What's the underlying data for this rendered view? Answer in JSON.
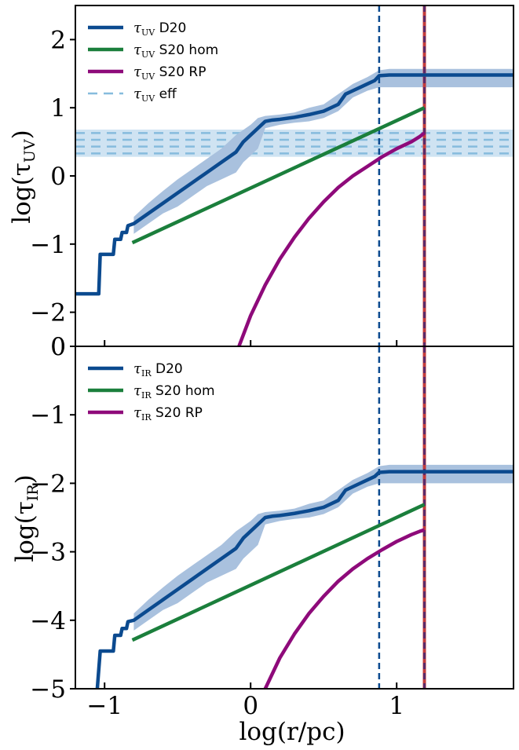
{
  "colors": {
    "d20": "#0b4a8f",
    "d20_band": "#a9c1de",
    "hom": "#1b7f3c",
    "rp": "#8e0a7a",
    "eff": "#86bcdd",
    "eff_band": "#cfe3f2",
    "vline_blue": "#0b4a8f",
    "vline_red": "#c23b3b",
    "vline_purple": "#5a2a6a"
  },
  "chart_data": [
    {
      "type": "line",
      "panel": "top",
      "ylabel_main": "log(τ",
      "ylabel_sub": "UV",
      "ylabel_end": ")",
      "ylim": [
        -2.5,
        2.5
      ],
      "yticks": [
        "−2",
        "−1",
        "0",
        "1",
        "2"
      ],
      "ytick_values": [
        -2,
        -1,
        0,
        1,
        2
      ],
      "extra_ytick_label": "0",
      "xlim": [
        -1.2,
        1.8
      ],
      "legend": {
        "placement": "top-left",
        "entries": [
          {
            "sym": "τ",
            "sub": "UV",
            "text": "D20",
            "key": "d20",
            "style": "solid"
          },
          {
            "sym": "τ",
            "sub": "UV",
            "text": "S20 hom",
            "key": "hom",
            "style": "solid"
          },
          {
            "sym": "τ",
            "sub": "UV",
            "text": "S20 RP",
            "key": "rp",
            "style": "solid"
          },
          {
            "sym": "τ",
            "sub": "UV",
            "text": "eff",
            "key": "eff",
            "style": "dashed"
          }
        ]
      },
      "series": [
        {
          "name": "τUV D20",
          "x": [
            -1.2,
            -1.04,
            -1.03,
            -0.94,
            -0.93,
            -0.89,
            -0.88,
            -0.85,
            -0.84,
            -0.8,
            -0.7,
            -0.6,
            -0.5,
            -0.4,
            -0.3,
            -0.2,
            -0.1,
            -0.05,
            0.0,
            0.05,
            0.1,
            0.15,
            0.2,
            0.3,
            0.4,
            0.5,
            0.6,
            0.65,
            0.7,
            0.75,
            0.8,
            0.85,
            0.88,
            0.95,
            1.2,
            1.8
          ],
          "y": [
            -1.73,
            -1.73,
            -1.15,
            -1.15,
            -0.93,
            -0.93,
            -0.83,
            -0.83,
            -0.73,
            -0.7,
            -0.55,
            -0.4,
            -0.25,
            -0.1,
            0.05,
            0.2,
            0.35,
            0.5,
            0.6,
            0.7,
            0.8,
            0.82,
            0.83,
            0.86,
            0.9,
            0.95,
            1.05,
            1.2,
            1.25,
            1.3,
            1.35,
            1.4,
            1.47,
            1.48,
            1.48,
            1.48
          ]
        },
        {
          "name": "τUV D20 upper",
          "x": [
            -0.8,
            -0.7,
            -0.6,
            -0.5,
            -0.4,
            -0.3,
            -0.2,
            -0.1,
            0.0,
            0.05,
            0.1,
            0.2,
            0.3,
            0.4,
            0.5,
            0.6,
            0.7,
            0.8,
            0.88,
            0.95,
            1.2,
            1.8
          ],
          "y": [
            -0.6,
            -0.4,
            -0.22,
            -0.05,
            0.1,
            0.25,
            0.4,
            0.6,
            0.75,
            0.85,
            0.88,
            0.9,
            0.93,
            1.0,
            1.05,
            1.2,
            1.35,
            1.45,
            1.55,
            1.57,
            1.57,
            1.57
          ]
        },
        {
          "name": "τUV D20 lower",
          "x": [
            -0.8,
            -0.7,
            -0.6,
            -0.5,
            -0.4,
            -0.3,
            -0.2,
            -0.1,
            -0.05,
            0.0,
            0.05,
            0.1,
            0.2,
            0.3,
            0.4,
            0.5,
            0.6,
            0.7,
            0.8,
            0.88,
            0.95,
            1.2,
            1.8
          ],
          "y": [
            -0.85,
            -0.7,
            -0.55,
            -0.45,
            -0.3,
            -0.15,
            -0.05,
            0.05,
            0.2,
            0.3,
            0.4,
            0.7,
            0.75,
            0.78,
            0.8,
            0.85,
            0.95,
            1.15,
            1.25,
            1.3,
            1.3,
            1.3,
            1.3
          ]
        },
        {
          "name": "τUV S20 hom",
          "x": [
            -0.81,
            1.19
          ],
          "y": [
            -0.98,
            1.0
          ]
        },
        {
          "name": "τUV S20 RP",
          "x": [
            -0.08,
            0.0,
            0.1,
            0.2,
            0.3,
            0.4,
            0.5,
            0.6,
            0.7,
            0.8,
            0.9,
            1.0,
            1.1,
            1.16,
            1.19
          ],
          "y": [
            -2.5,
            -2.05,
            -1.6,
            -1.22,
            -0.9,
            -0.62,
            -0.38,
            -0.17,
            0.0,
            0.14,
            0.28,
            0.4,
            0.5,
            0.58,
            0.63
          ]
        }
      ],
      "eff_levels": [
        0.33,
        0.43,
        0.53,
        0.63
      ],
      "eff_band": [
        0.28,
        0.68
      ],
      "vlines": [
        0.88,
        1.19
      ]
    },
    {
      "type": "line",
      "panel": "bottom",
      "ylabel_main": "log(τ",
      "ylabel_sub": "IR",
      "ylabel_end": ")",
      "ylim": [
        -5,
        0
      ],
      "yticks": [
        "−5",
        "−4",
        "−3",
        "−2",
        "−1",
        "0"
      ],
      "ytick_values": [
        -5,
        -4,
        -3,
        -2,
        -1,
        0
      ],
      "xlabel": "log(r/pc)",
      "xticks": [
        "−1",
        "0",
        "1"
      ],
      "xtick_values": [
        -1,
        0,
        1
      ],
      "xlim": [
        -1.2,
        1.8
      ],
      "legend": {
        "placement": "top-left",
        "entries": [
          {
            "sym": "τ",
            "sub": "IR",
            "text": "D20",
            "key": "d20",
            "style": "solid"
          },
          {
            "sym": "τ",
            "sub": "IR",
            "text": "S20 hom",
            "key": "hom",
            "style": "solid"
          },
          {
            "sym": "τ",
            "sub": "IR",
            "text": "S20 RP",
            "key": "rp",
            "style": "solid"
          }
        ]
      },
      "series": [
        {
          "name": "τIR D20",
          "x": [
            -1.05,
            -1.03,
            -0.94,
            -0.93,
            -0.89,
            -0.88,
            -0.85,
            -0.84,
            -0.8,
            -0.7,
            -0.6,
            -0.5,
            -0.4,
            -0.3,
            -0.2,
            -0.1,
            -0.05,
            0.0,
            0.05,
            0.1,
            0.15,
            0.2,
            0.3,
            0.4,
            0.5,
            0.6,
            0.65,
            0.7,
            0.75,
            0.8,
            0.85,
            0.88,
            0.95,
            1.2,
            1.8
          ],
          "y": [
            -5.0,
            -4.45,
            -4.45,
            -4.22,
            -4.22,
            -4.12,
            -4.12,
            -4.02,
            -4.0,
            -3.85,
            -3.7,
            -3.55,
            -3.4,
            -3.25,
            -3.1,
            -2.95,
            -2.8,
            -2.7,
            -2.6,
            -2.5,
            -2.48,
            -2.47,
            -2.44,
            -2.4,
            -2.35,
            -2.25,
            -2.1,
            -2.05,
            -2.0,
            -1.95,
            -1.9,
            -1.84,
            -1.83,
            -1.83,
            -1.83
          ]
        },
        {
          "name": "τIR D20 upper",
          "x": [
            -0.8,
            -0.7,
            -0.6,
            -0.5,
            -0.4,
            -0.3,
            -0.2,
            -0.1,
            0.0,
            0.05,
            0.1,
            0.2,
            0.3,
            0.4,
            0.5,
            0.6,
            0.7,
            0.8,
            0.88,
            0.95,
            1.2,
            1.8
          ],
          "y": [
            -3.9,
            -3.7,
            -3.52,
            -3.35,
            -3.2,
            -3.05,
            -2.9,
            -2.7,
            -2.55,
            -2.45,
            -2.42,
            -2.4,
            -2.37,
            -2.3,
            -2.25,
            -2.1,
            -1.95,
            -1.85,
            -1.75,
            -1.73,
            -1.73,
            -1.73
          ]
        },
        {
          "name": "τIR D20 lower",
          "x": [
            -0.8,
            -0.7,
            -0.6,
            -0.5,
            -0.4,
            -0.3,
            -0.2,
            -0.1,
            -0.05,
            0.0,
            0.05,
            0.1,
            0.2,
            0.3,
            0.4,
            0.5,
            0.6,
            0.7,
            0.8,
            0.88,
            0.95,
            1.2,
            1.8
          ],
          "y": [
            -4.15,
            -4.0,
            -3.85,
            -3.75,
            -3.6,
            -3.45,
            -3.35,
            -3.25,
            -3.1,
            -3.0,
            -2.9,
            -2.6,
            -2.55,
            -2.52,
            -2.5,
            -2.45,
            -2.35,
            -2.15,
            -2.05,
            -2.0,
            -2.0,
            -2.0,
            -2.0
          ]
        },
        {
          "name": "τIR S20 hom",
          "x": [
            -0.81,
            1.19
          ],
          "y": [
            -4.29,
            -2.31
          ]
        },
        {
          "name": "τIR S20 RP",
          "x": [
            0.1,
            0.2,
            0.3,
            0.4,
            0.5,
            0.6,
            0.7,
            0.8,
            0.9,
            1.0,
            1.1,
            1.16,
            1.19
          ],
          "y": [
            -5.0,
            -4.55,
            -4.2,
            -3.9,
            -3.65,
            -3.43,
            -3.25,
            -3.1,
            -2.97,
            -2.85,
            -2.75,
            -2.7,
            -2.68
          ]
        }
      ],
      "vlines": [
        0.88,
        1.19
      ]
    }
  ]
}
